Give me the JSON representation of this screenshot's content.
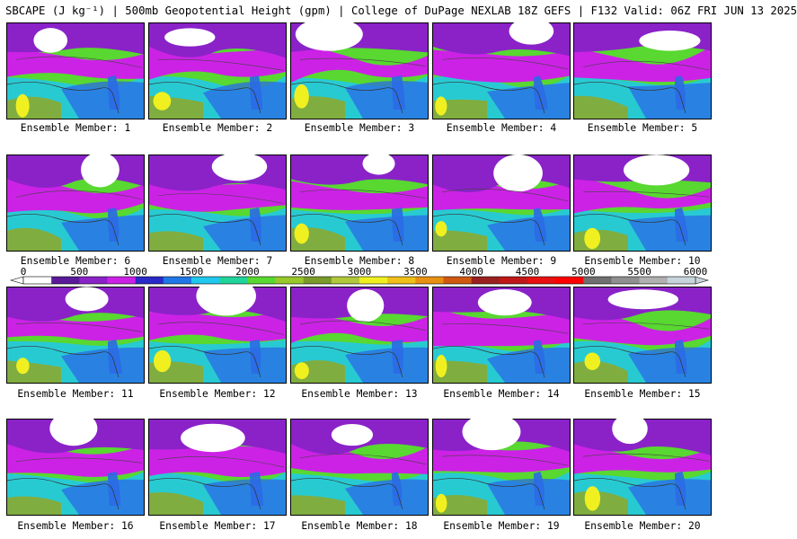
{
  "header": {
    "title": "SBCAPE (J kg⁻¹) | 500mb Geopotential Height (gpm) | College of DuPage NEXLAB 18Z GEFS | F132 Valid: 06Z FRI JUN 13 2025"
  },
  "panels": [
    {
      "label": "Ensemble Member: 1"
    },
    {
      "label": "Ensemble Member: 2"
    },
    {
      "label": "Ensemble Member: 3"
    },
    {
      "label": "Ensemble Member: 4"
    },
    {
      "label": "Ensemble Member: 5"
    },
    {
      "label": "Ensemble Member: 6"
    },
    {
      "label": "Ensemble Member: 7"
    },
    {
      "label": "Ensemble Member: 8"
    },
    {
      "label": "Ensemble Member: 9"
    },
    {
      "label": "Ensemble Member: 10"
    },
    {
      "label": "Ensemble Member: 11"
    },
    {
      "label": "Ensemble Member: 12"
    },
    {
      "label": "Ensemble Member: 13"
    },
    {
      "label": "Ensemble Member: 14"
    },
    {
      "label": "Ensemble Member: 15"
    },
    {
      "label": "Ensemble Member: 16"
    },
    {
      "label": "Ensemble Member: 17"
    },
    {
      "label": "Ensemble Member: 18"
    },
    {
      "label": "Ensemble Member: 19"
    },
    {
      "label": "Ensemble Member: 20"
    }
  ],
  "colorbar": {
    "ticks": [
      "0",
      "500",
      "1000",
      "1500",
      "2000",
      "2500",
      "3000",
      "3500",
      "4000",
      "4500",
      "5000",
      "5500",
      "6000"
    ],
    "colors": [
      "#ffffff",
      "#5a1a9a",
      "#8a22c8",
      "#cc22e6",
      "#2a2ac8",
      "#1f78e6",
      "#20c8ee",
      "#20d49c",
      "#58d830",
      "#98c82a",
      "#7a9a2a",
      "#b0c83a",
      "#f0f020",
      "#f0c018",
      "#e89012",
      "#d05a12",
      "#9a2020",
      "#c01818",
      "#e81010",
      "#ff0000",
      "#707070",
      "#909090",
      "#b0b0b0",
      "#c8d4dc"
    ]
  },
  "map_colors": {
    "magenta": "#cc22e6",
    "purple": "#8a22c8",
    "blue": "#2a6ae6",
    "cyan": "#20c8ee",
    "green": "#58d830",
    "olive": "#8aaa30",
    "yellow": "#f0f020"
  }
}
